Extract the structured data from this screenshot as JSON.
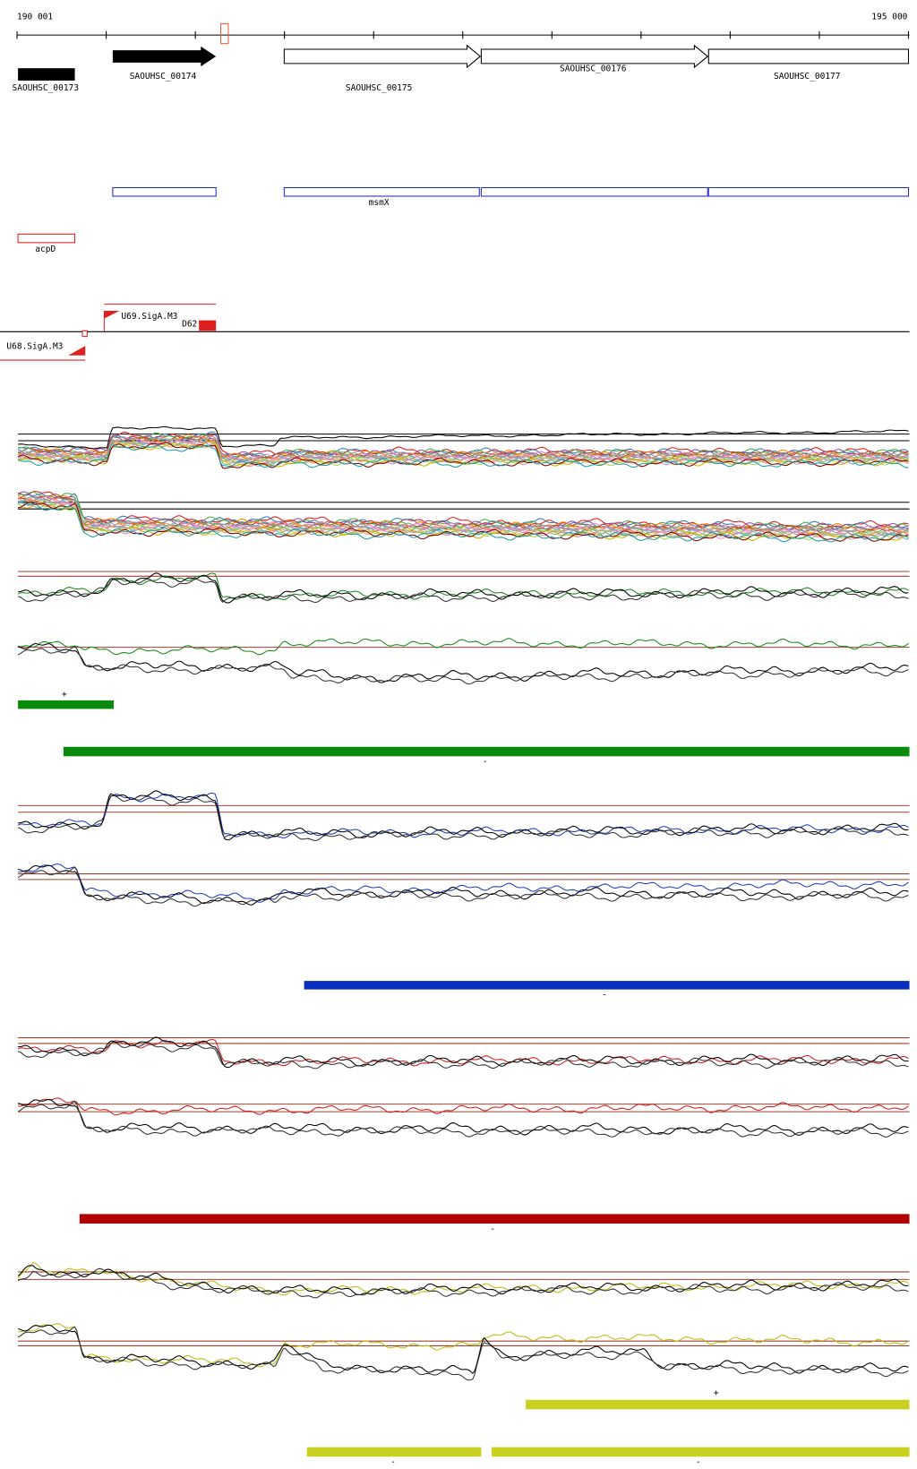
{
  "ruler": {
    "start": "190 001",
    "end": "195 000"
  },
  "genes": [
    {
      "label": "SAOUHSC_00173"
    },
    {
      "label": "SAOUHSC_00174"
    },
    {
      "label": "SAOUHSC_00175"
    },
    {
      "label": "SAOUHSC_00176"
    },
    {
      "label": "SAOUHSC_00177"
    }
  ],
  "features": {
    "blue_label": "msmX",
    "red_label": "acpD"
  },
  "regulatory": {
    "labels": [
      "U69.SigA.M3",
      "D62",
      "U68.SigA.M3"
    ]
  },
  "segments": [
    {
      "label": "+"
    },
    {
      "label": "-"
    },
    {
      "label": "-"
    },
    {
      "label": "-"
    },
    {
      "label": "+"
    },
    {
      "label": "-"
    },
    {
      "label": "-"
    }
  ]
}
